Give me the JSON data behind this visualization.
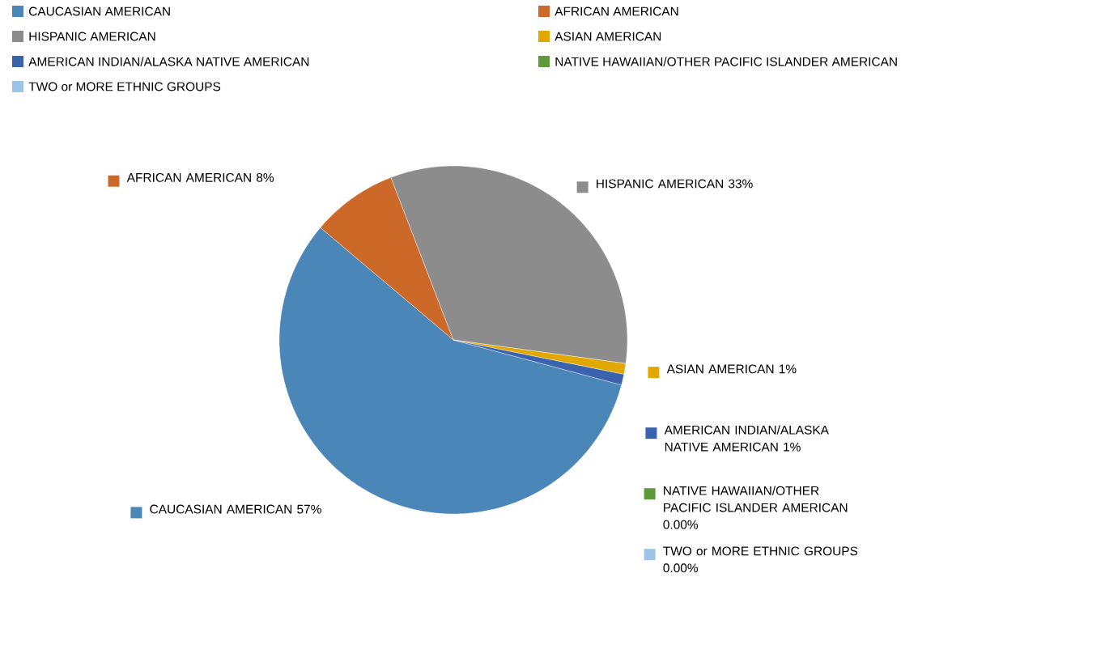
{
  "chart_data": {
    "type": "pie",
    "categories": [
      "CAUCASIAN AMERICAN",
      "AFRICAN AMERICAN",
      "HISPANIC AMERICAN",
      "ASIAN AMERICAN",
      "AMERICAN INDIAN/ALASKA NATIVE AMERICAN",
      "NATIVE HAWAIIAN/OTHER PACIFIC ISLANDER AMERICAN",
      "TWO or MORE ETHNIC GROUPS"
    ],
    "values": [
      57,
      8,
      33,
      1,
      1,
      0,
      0
    ],
    "value_labels": [
      "57%",
      "8%",
      "33%",
      "1%",
      "1%",
      "0.00%",
      "0.00%"
    ],
    "colors": [
      "#4a86b8",
      "#cc6828",
      "#8c8c8c",
      "#e0a800",
      "#3a62ad",
      "#5e9a3a",
      "#9dc3e6"
    ],
    "legend": "top"
  }
}
